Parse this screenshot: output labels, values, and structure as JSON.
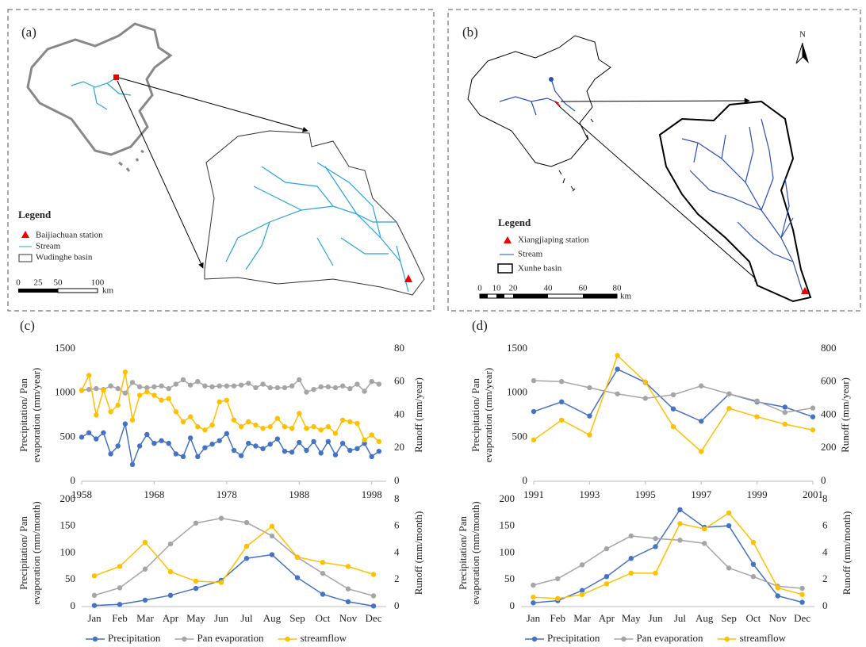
{
  "maps": [
    {
      "label": "(a)",
      "legend_title": "Legend",
      "legend": [
        "Baijiachuan station",
        "Stream",
        "Wudinghe basin"
      ],
      "scale": [
        "0",
        "25",
        "50",
        "100"
      ],
      "scale_unit": "km"
    },
    {
      "label": "(b)",
      "legend_title": "Legend",
      "legend": [
        "Xiangjiaping station",
        "Stream",
        "Xunhe basin"
      ],
      "scale": [
        "0",
        "10",
        "20",
        "40",
        "60",
        "80"
      ],
      "scale_unit": "km",
      "north": "N"
    }
  ],
  "chart_data": [
    {
      "type": "line",
      "label": "(c)",
      "ylabel": [
        "Precipitation/ Pan",
        "evaporation (mm/year)"
      ],
      "y2label": "Runoff (mm/year)",
      "x": [
        1958,
        1959,
        1960,
        1961,
        1962,
        1963,
        1964,
        1965,
        1966,
        1967,
        1968,
        1969,
        1970,
        1971,
        1972,
        1973,
        1974,
        1975,
        1976,
        1977,
        1978,
        1979,
        1980,
        1981,
        1982,
        1983,
        1984,
        1985,
        1986,
        1987,
        1988,
        1989,
        1990,
        1991,
        1992,
        1993,
        1994,
        1995,
        1996,
        1997,
        1998,
        1999
      ],
      "xlim": [
        1958,
        2000
      ],
      "xticks": [
        1958,
        1968,
        1978,
        1988,
        1998
      ],
      "ylim": [
        0,
        1500
      ],
      "yticks": [
        0,
        500,
        1000,
        1500
      ],
      "y2lim": [
        0,
        80
      ],
      "y2ticks": [
        0,
        20,
        40,
        60,
        80
      ],
      "series": [
        {
          "color": "#4472c4",
          "values": [
            500,
            550,
            480,
            550,
            310,
            400,
            650,
            190,
            400,
            530,
            430,
            460,
            430,
            310,
            280,
            490,
            280,
            380,
            420,
            460,
            540,
            350,
            290,
            430,
            400,
            370,
            420,
            480,
            340,
            330,
            440,
            350,
            450,
            320,
            450,
            300,
            430,
            350,
            370,
            430,
            280,
            340
          ]
        },
        {
          "color": "#a5a5a5",
          "values": [
            1030,
            1040,
            1050,
            1040,
            1080,
            1050,
            1000,
            1120,
            1070,
            1060,
            1070,
            1080,
            1050,
            1100,
            1150,
            1090,
            1130,
            1080,
            1070,
            1080,
            1080,
            1080,
            1090,
            1110,
            1060,
            1100,
            1060,
            1060,
            1060,
            1080,
            1150,
            1010,
            1040,
            1070,
            1070,
            1060,
            1080,
            1050,
            1100,
            1020,
            1130,
            1100
          ]
        },
        {
          "color": "#ffc000",
          "axis": "y2",
          "values": [
            55,
            64,
            40,
            55,
            42,
            46,
            66,
            37,
            52,
            54,
            52,
            49,
            50,
            42,
            36,
            39,
            33,
            31,
            34,
            48,
            49,
            37,
            33,
            36,
            34,
            32,
            33,
            38,
            33,
            32,
            41,
            32,
            33,
            31,
            33,
            29,
            37,
            36,
            35,
            25,
            28,
            24
          ]
        }
      ]
    },
    {
      "type": "line",
      "ylabel": [
        "Precipitation/ Pan",
        "evaporation (mm/month)"
      ],
      "y2label": "Runoff (mm/month)",
      "categories": [
        "Jan",
        "Feb",
        "Mar",
        "Apr",
        "May",
        "Jun",
        "Jul",
        "Aug",
        "Sep",
        "Oct",
        "Nov",
        "Dec"
      ],
      "ylim": [
        0,
        200
      ],
      "yticks": [
        0,
        50,
        100,
        150,
        200
      ],
      "y2lim": [
        0,
        8
      ],
      "y2ticks": [
        0,
        2,
        4,
        6,
        8
      ],
      "legend": "bottom",
      "series": [
        {
          "name": "Precipitation",
          "color": "#4472c4",
          "values": [
            2,
            4,
            12,
            21,
            34,
            49,
            90,
            97,
            54,
            23,
            9,
            1
          ]
        },
        {
          "name": "Pan evaporation",
          "color": "#a5a5a5",
          "values": [
            21,
            35,
            70,
            117,
            156,
            165,
            157,
            132,
            92,
            62,
            33,
            20
          ]
        },
        {
          "name": "streamflow",
          "color": "#ffc000",
          "axis": "y2",
          "values": [
            2.3,
            3,
            4.8,
            2.6,
            1.9,
            1.8,
            4.5,
            6,
            3.7,
            3.3,
            3,
            2.4
          ]
        }
      ]
    },
    {
      "type": "line",
      "label": "(d)",
      "ylabel": [
        "Precipitation/ Pan",
        "evaporation (mm/year)"
      ],
      "y2label": "Runoff (mm/year)",
      "x": [
        1991,
        1992,
        1993,
        1994,
        1995,
        1996,
        1997,
        1998,
        1999,
        2000,
        2001
      ],
      "xlim": [
        1991,
        2001
      ],
      "xticks": [
        1991,
        1993,
        1995,
        1997,
        1999,
        2001
      ],
      "ylim": [
        0,
        1500
      ],
      "yticks": [
        0,
        500,
        1000,
        1500
      ],
      "y2lim": [
        0,
        800
      ],
      "y2ticks": [
        0,
        200,
        400,
        600,
        800
      ],
      "series": [
        {
          "color": "#4472c4",
          "values": [
            790,
            900,
            740,
            1270,
            1120,
            820,
            680,
            990,
            900,
            840,
            730
          ]
        },
        {
          "color": "#a5a5a5",
          "values": [
            1140,
            1130,
            1060,
            990,
            940,
            980,
            1080,
            990,
            910,
            780,
            830
          ]
        },
        {
          "color": "#ffc000",
          "axis": "y2",
          "values": [
            250,
            370,
            280,
            760,
            600,
            330,
            180,
            440,
            390,
            345,
            310
          ]
        }
      ]
    },
    {
      "type": "line",
      "ylabel": [
        "Precipitation/ Pan",
        "evaporation (mm/month)"
      ],
      "y2label": "Runoff (mm/month)",
      "categories": [
        "Jan",
        "Feb",
        "Mar",
        "Apr",
        "May",
        "Jun",
        "Jul",
        "Aug",
        "Sep",
        "Oct",
        "Nov",
        "Dec"
      ],
      "ylim": [
        0,
        200
      ],
      "yticks": [
        0,
        50,
        100,
        150,
        200
      ],
      "y2lim": [
        0,
        8
      ],
      "y2ticks": [
        0,
        2,
        4,
        6,
        8
      ],
      "legend": "bottom",
      "series": [
        {
          "name": "Precipitation",
          "color": "#4472c4",
          "values": [
            7,
            11,
            30,
            56,
            90,
            112,
            181,
            148,
            151,
            79,
            20,
            8
          ]
        },
        {
          "name": "Pan evaporation",
          "color": "#a5a5a5",
          "values": [
            40,
            52,
            78,
            108,
            132,
            127,
            124,
            118,
            72,
            56,
            38,
            34
          ]
        },
        {
          "name": "streamflow",
          "color": "#ffc000",
          "axis": "y2",
          "values": [
            0.7,
            0.6,
            0.9,
            1.7,
            2.5,
            2.5,
            6.2,
            5.8,
            7,
            4.8,
            1.4,
            0.9
          ]
        }
      ]
    }
  ]
}
